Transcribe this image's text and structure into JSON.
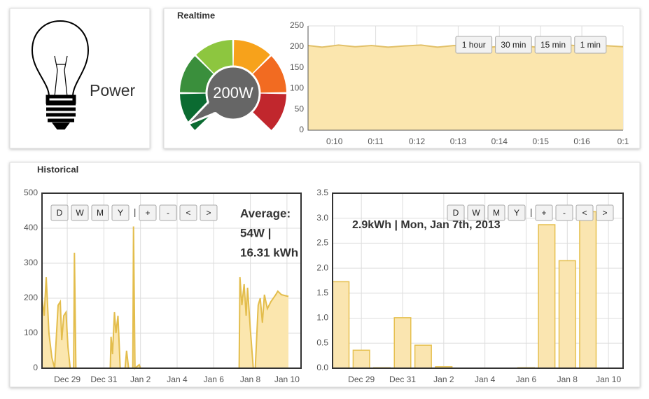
{
  "panels": {
    "power": "Power",
    "realtime": "Realtime",
    "historical": "Historical"
  },
  "controls": {
    "realtime": [
      "1 hour",
      "30 min",
      "15 min",
      "1 min"
    ],
    "history_power": [
      "D",
      "W",
      "M",
      "Y",
      "|",
      "+",
      "-",
      "<",
      ">"
    ],
    "history_energy": [
      "D",
      "W",
      "M",
      "Y",
      "|",
      "+",
      "-",
      "<",
      ">"
    ]
  },
  "chart_data": [
    {
      "type": "gauge",
      "values": [
        200
      ],
      "value_labels": [
        "200W"
      ],
      "ylim": [
        0,
        5000
      ],
      "colors": [
        "#0b6b31",
        "#3a8f3c",
        "#8dc63f",
        "#f7a21b",
        "#f26b21",
        "#c1272d"
      ]
    },
    {
      "type": "area",
      "color": "#e2c16a",
      "fill": "#fbe6ae",
      "grid": true,
      "x": [
        9.36,
        9.7,
        10.1,
        10.5,
        10.9,
        11.3,
        11.7,
        12.1,
        12.5,
        12.9,
        13.3,
        13.7,
        14.1,
        14.5,
        14.9,
        15.3,
        15.7,
        16.1,
        16.5,
        17.0
      ],
      "values": [
        203,
        199,
        204,
        200,
        203,
        199,
        202,
        204,
        199,
        203,
        200,
        198,
        202,
        203,
        199,
        201,
        204,
        200,
        203,
        200
      ],
      "xlim": [
        9.36,
        17
      ],
      "ylim": [
        0,
        250
      ],
      "xticks": [
        {
          "value": 10,
          "label": "0:10"
        },
        {
          "value": 11,
          "label": "0:11"
        },
        {
          "value": 12,
          "label": "0:12"
        },
        {
          "value": 13,
          "label": "0:13"
        },
        {
          "value": 14,
          "label": "0:14"
        },
        {
          "value": 15,
          "label": "0:15"
        },
        {
          "value": 16,
          "label": "0:16"
        },
        {
          "value": 17,
          "label": "0:1"
        }
      ],
      "yticks": [
        0,
        50,
        100,
        150,
        200,
        250
      ]
    },
    {
      "type": "area",
      "color": "#e3bd4c",
      "fill": "#fbe6ae",
      "grid": true,
      "annotations": [
        "Average:",
        "54W |",
        "16.31 kWh"
      ],
      "x": [
        27.62,
        27.74,
        27.85,
        28.0,
        28.16,
        28.31,
        28.5,
        28.62,
        28.7,
        28.81,
        28.93,
        29.04,
        29.16,
        29.35,
        29.39,
        29.47,
        31.35,
        31.39,
        31.47,
        31.58,
        31.66,
        31.77,
        31.89,
        32.16,
        32.24,
        32.35,
        32.58,
        32.62,
        32.7,
        32.93,
        33.0,
        38.39,
        38.43,
        38.54,
        38.66,
        38.77,
        38.85,
        39.0,
        39.16,
        39.27,
        39.43,
        39.54,
        39.66,
        39.77,
        39.93,
        40.12,
        40.39,
        40.5,
        40.7,
        41.08
      ],
      "values": [
        200,
        150,
        260,
        100,
        30,
        0,
        180,
        190,
        80,
        150,
        160,
        60,
        0,
        0,
        330,
        0,
        0,
        90,
        40,
        160,
        100,
        150,
        0,
        0,
        50,
        0,
        0,
        405,
        0,
        10,
        0,
        0,
        260,
        180,
        240,
        150,
        230,
        110,
        0,
        0,
        180,
        200,
        130,
        210,
        170,
        190,
        210,
        220,
        210,
        205
      ],
      "xlim": [
        27.62,
        41.77
      ],
      "ylim": [
        0,
        500
      ],
      "xticks": [
        {
          "value": 29,
          "label": "Dec 29"
        },
        {
          "value": 31,
          "label": "Dec 31"
        },
        {
          "value": 33,
          "label": "Jan 2"
        },
        {
          "value": 35,
          "label": "Jan 4"
        },
        {
          "value": 37,
          "label": "Jan 6"
        },
        {
          "value": 39,
          "label": "Jan 8"
        },
        {
          "value": 41,
          "label": "Jan 10"
        }
      ],
      "yticks": [
        0,
        100,
        200,
        300,
        400,
        500
      ]
    },
    {
      "type": "bar",
      "color": "#e6c04f",
      "fill": "#fae5b0",
      "grid": true,
      "annotations": [
        "2.9kWh | Mon, Jan 7th, 2013"
      ],
      "x": [
        28,
        29,
        30,
        31,
        32,
        33,
        34,
        35,
        36,
        37,
        38,
        39,
        40
      ],
      "values": [
        1.73,
        0.36,
        0.01,
        1.01,
        0.46,
        0.03,
        0,
        0,
        0,
        0.01,
        2.87,
        2.15,
        3.13
      ],
      "xlim": [
        27.6,
        41.71
      ],
      "ylim": [
        0,
        3.5
      ],
      "xticks": [
        {
          "value": 29,
          "label": "Dec 29"
        },
        {
          "value": 31,
          "label": "Dec 31"
        },
        {
          "value": 33,
          "label": "Jan 2"
        },
        {
          "value": 35,
          "label": "Jan 4"
        },
        {
          "value": 37,
          "label": "Jan 6"
        },
        {
          "value": 39,
          "label": "Jan 8"
        },
        {
          "value": 41,
          "label": "Jan 10"
        }
      ],
      "yticks": [
        {
          "value": 0,
          "label": "0.0"
        },
        0.5,
        {
          "value": 1,
          "label": "1.0"
        },
        1.5,
        {
          "value": 2,
          "label": "2.0"
        },
        2.5,
        {
          "value": 3,
          "label": "3.0"
        },
        3.5
      ]
    }
  ]
}
